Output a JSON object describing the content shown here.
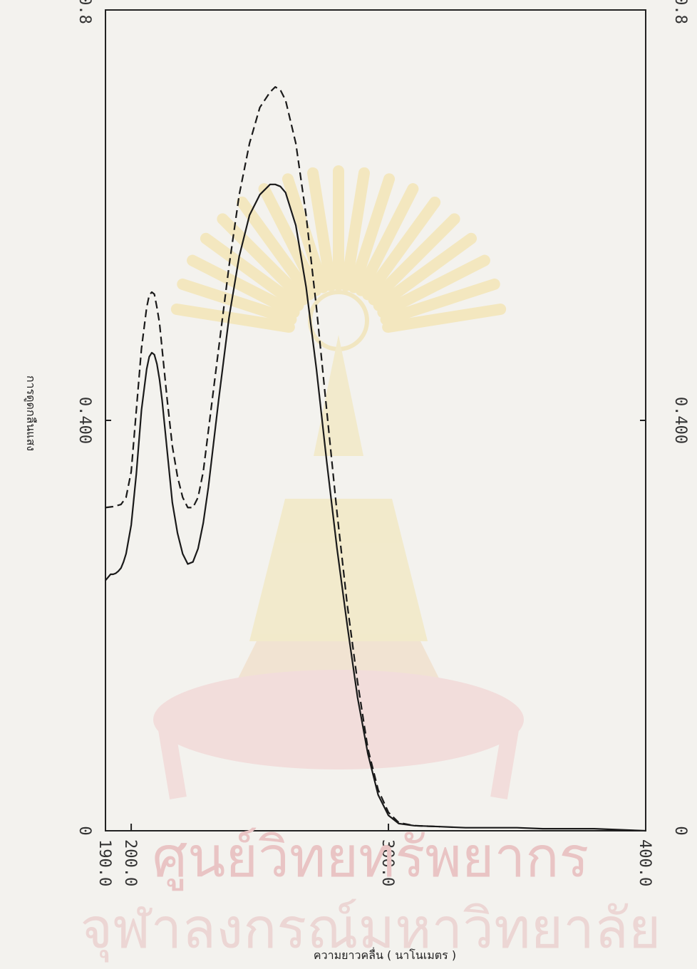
{
  "chart_data": {
    "type": "line",
    "title": "",
    "xlabel": "ความยาวคลื่น  ( นาโนเมตร )",
    "ylabel": "การดูดกลืนแสง",
    "xlim": [
      190,
      400
    ],
    "ylim": [
      0,
      0.8
    ],
    "x_ticks": [
      "190.0",
      "200.0",
      "300.0",
      "400.0"
    ],
    "y_ticks_left": [
      "0",
      "0.400",
      "0.8"
    ],
    "y_ticks_right": [
      "0",
      "0.400",
      "0.8"
    ],
    "grid": false,
    "series": [
      {
        "style": "solid",
        "x": [
          190,
          191,
          192,
          193,
          194,
          195,
          196,
          197,
          198,
          200,
          202,
          204,
          206,
          207,
          208,
          209,
          210,
          211,
          212,
          214,
          216,
          218,
          220,
          222,
          224,
          226,
          228,
          230,
          234,
          238,
          242,
          246,
          250,
          254,
          256,
          258,
          260,
          264,
          268,
          272,
          276,
          280,
          284,
          288,
          292,
          296,
          300,
          304,
          310,
          320,
          330,
          340,
          350,
          360,
          370,
          380,
          400
        ],
        "y": [
          0.244,
          0.247,
          0.25,
          0.25,
          0.251,
          0.253,
          0.256,
          0.262,
          0.27,
          0.298,
          0.348,
          0.41,
          0.45,
          0.462,
          0.466,
          0.464,
          0.455,
          0.44,
          0.42,
          0.37,
          0.32,
          0.29,
          0.27,
          0.26,
          0.262,
          0.275,
          0.3,
          0.335,
          0.42,
          0.5,
          0.56,
          0.6,
          0.62,
          0.63,
          0.63,
          0.628,
          0.622,
          0.59,
          0.53,
          0.45,
          0.36,
          0.275,
          0.2,
          0.13,
          0.075,
          0.035,
          0.015,
          0.007,
          0.005,
          0.004,
          0.003,
          0.003,
          0.003,
          0.002,
          0.002,
          0.002,
          0.0
        ]
      },
      {
        "style": "dashed",
        "x": [
          190,
          193,
          196,
          198,
          200,
          202,
          204,
          206,
          207,
          208,
          209,
          210,
          211,
          212,
          214,
          216,
          218,
          220,
          222,
          224,
          226,
          228,
          230,
          234,
          238,
          242,
          246,
          250,
          254,
          256,
          258,
          260,
          264,
          268,
          272,
          276,
          280,
          284,
          288,
          292,
          296,
          300,
          304,
          310,
          320
        ],
        "y": [
          0.315,
          0.316,
          0.318,
          0.325,
          0.35,
          0.41,
          0.47,
          0.51,
          0.522,
          0.525,
          0.523,
          0.51,
          0.495,
          0.47,
          0.42,
          0.375,
          0.345,
          0.325,
          0.315,
          0.315,
          0.325,
          0.35,
          0.39,
          0.47,
          0.55,
          0.62,
          0.67,
          0.705,
          0.72,
          0.725,
          0.722,
          0.712,
          0.67,
          0.6,
          0.51,
          0.41,
          0.31,
          0.22,
          0.145,
          0.08,
          0.04,
          0.018,
          0.008,
          0.005,
          0.004
        ]
      }
    ]
  },
  "watermark": {
    "color": "#e8b8b8",
    "line1": "ศูนย์วิทยทรัพยากร",
    "line2": "จุฬาลงกรณ์มหาวิทยาลัย"
  }
}
